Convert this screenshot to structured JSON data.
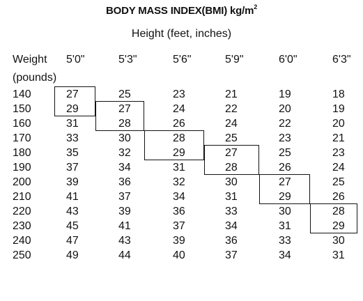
{
  "title": "BODY MASS INDEX(BMI) kg/m",
  "title_superscript": "2",
  "subtitle": "Height (feet, inches)",
  "weight_label_line1": "Weight",
  "weight_label_line2": "(pounds)",
  "heights": [
    "5'0\"",
    "5'3\"",
    "5'6\"",
    "5'9\"",
    "6'0\"",
    "6'3\""
  ],
  "weights": [
    "140",
    "150",
    "160",
    "170",
    "180",
    "190",
    "200",
    "210",
    "220",
    "230",
    "240",
    "250"
  ],
  "values": [
    [
      "27",
      "25",
      "23",
      "21",
      "19",
      "18"
    ],
    [
      "29",
      "27",
      "24",
      "22",
      "20",
      "19"
    ],
    [
      "31",
      "28",
      "26",
      "24",
      "22",
      "20"
    ],
    [
      "33",
      "30",
      "28",
      "25",
      "23",
      "21"
    ],
    [
      "35",
      "32",
      "29",
      "27",
      "25",
      "23"
    ],
    [
      "37",
      "34",
      "31",
      "28",
      "26",
      "24"
    ],
    [
      "39",
      "36",
      "32",
      "30",
      "27",
      "25"
    ],
    [
      "41",
      "37",
      "34",
      "31",
      "29",
      "26"
    ],
    [
      "43",
      "39",
      "36",
      "33",
      "30",
      "28"
    ],
    [
      "45",
      "41",
      "37",
      "34",
      "31",
      "29"
    ],
    [
      "47",
      "43",
      "39",
      "36",
      "33",
      "30"
    ],
    [
      "49",
      "44",
      "40",
      "37",
      "34",
      "31"
    ]
  ],
  "highlighted_ranges": [
    {
      "column": 0,
      "from_row": 0,
      "to_row": 1
    },
    {
      "column": 1,
      "from_row": 1,
      "to_row": 2
    },
    {
      "column": 2,
      "from_row": 3,
      "to_row": 4
    },
    {
      "column": 3,
      "from_row": 4,
      "to_row": 5
    },
    {
      "column": 4,
      "from_row": 6,
      "to_row": 7
    },
    {
      "column": 5,
      "from_row": 8,
      "to_row": 9
    }
  ]
}
